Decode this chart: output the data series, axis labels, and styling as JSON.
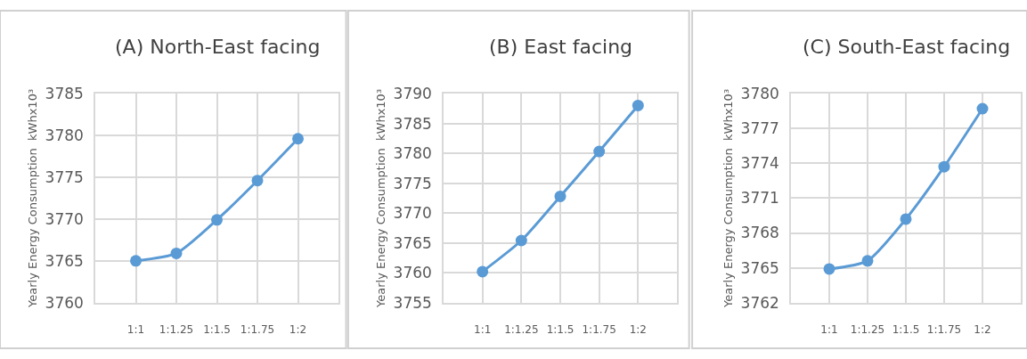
{
  "chart_data": [
    {
      "type": "line",
      "title": "(A) North-East facing",
      "ylabel": "Yearly Energy Consumption  kWhx10³",
      "categories": [
        "1:1",
        "1:1.25",
        "1:1.5",
        "1:1.75",
        "1:2"
      ],
      "series": [
        {
          "color": "#5b9bd5",
          "values": [
            3765.0,
            3765.9,
            3769.9,
            3774.6,
            3779.6
          ]
        }
      ],
      "ylim": [
        3760,
        3785
      ],
      "yticks": [
        3760,
        3765,
        3770,
        3775,
        3780,
        3785
      ],
      "grid": true,
      "marker": "circle",
      "line_style": "solid"
    },
    {
      "type": "line",
      "title": "(B) East facing",
      "ylabel": "Yearly Energy Consumption  kWhx10³",
      "categories": [
        "1:1",
        "1:1.25",
        "1:1.5",
        "1:1.75",
        "1:2"
      ],
      "series": [
        {
          "color": "#5b9bd5",
          "values": [
            3760.2,
            3765.4,
            3772.8,
            3780.3,
            3788.0
          ]
        }
      ],
      "ylim": [
        3755,
        3790
      ],
      "yticks": [
        3755,
        3760,
        3765,
        3770,
        3775,
        3780,
        3785,
        3790
      ],
      "grid": true,
      "marker": "circle",
      "line_style": "solid"
    },
    {
      "type": "line",
      "title": "(C) South-East facing",
      "ylabel": "Yearly Energy Consumption  kWhx10³",
      "categories": [
        "1:1",
        "1:1.25",
        "1:1.5",
        "1:1.75",
        "1:2"
      ],
      "series": [
        {
          "color": "#5b9bd5",
          "values": [
            3764.9,
            3765.6,
            3769.2,
            3773.7,
            3778.7
          ]
        }
      ],
      "ylim": [
        3762,
        3780
      ],
      "yticks": [
        3762,
        3765,
        3768,
        3771,
        3774,
        3777,
        3780
      ],
      "grid": true,
      "marker": "circle",
      "line_style": "solid"
    }
  ]
}
